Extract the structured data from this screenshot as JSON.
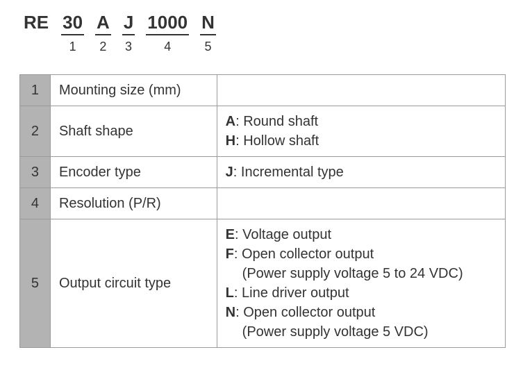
{
  "code": {
    "prefix": "RE",
    "segments": [
      {
        "value": "30",
        "index": "1"
      },
      {
        "value": "A",
        "index": "2"
      },
      {
        "value": "J",
        "index": "3"
      },
      {
        "value": "1000",
        "index": "4"
      },
      {
        "value": "N",
        "index": "5"
      }
    ]
  },
  "table": {
    "rows": [
      {
        "num": "1",
        "label": "Mounting size (mm)",
        "detail_html": ""
      },
      {
        "num": "2",
        "label": "Shaft shape",
        "detail_html": "<span class=\"b\">A</span>: Round shaft<br><span class=\"b\">H</span>: Hollow shaft"
      },
      {
        "num": "3",
        "label": "Encoder type",
        "detail_html": "<span class=\"b\">J</span>: Incremental type"
      },
      {
        "num": "4",
        "label": "Resolution (P/R)",
        "detail_html": ""
      },
      {
        "num": "5",
        "label": "Output circuit type",
        "detail_html": "<span class=\"b\">E</span>: Voltage output<br><span class=\"b\">F</span>: Open collector output<br><span class=\"indent\">(Power supply voltage 5 to 24 VDC)</span><span class=\"b\">L</span>: Line driver output<br><span class=\"b\">N</span>: Open collector output<br><span class=\"indent\">(Power supply voltage 5 VDC)</span>"
      }
    ]
  },
  "colors": {
    "text": "#333333",
    "border": "#999999",
    "num_bg": "#b3b3b3",
    "background": "#ffffff"
  }
}
